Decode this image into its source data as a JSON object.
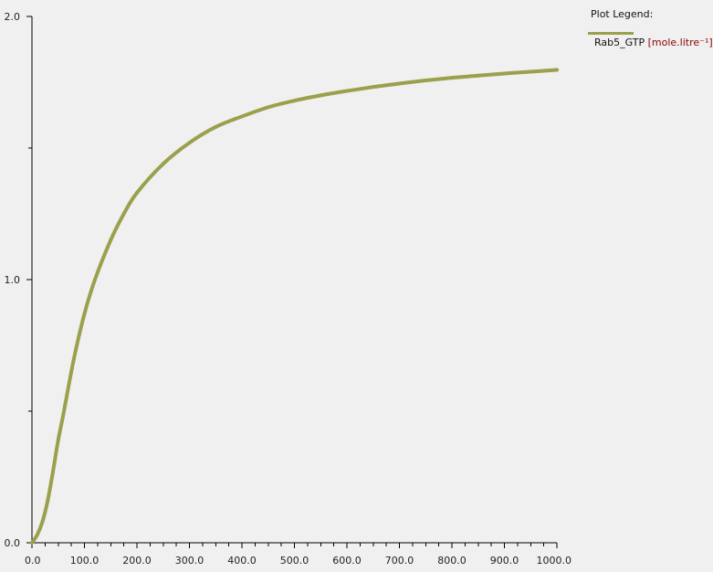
{
  "chart_data": {
    "type": "line",
    "title": "",
    "xlabel": "",
    "ylabel": "",
    "xlim": [
      0,
      1000
    ],
    "ylim": [
      0,
      2.0
    ],
    "x_ticks": [
      "0.0",
      "100.0",
      "200.0",
      "300.0",
      "400.0",
      "500.0",
      "600.0",
      "700.0",
      "800.0",
      "900.0",
      "1000.0"
    ],
    "y_ticks": [
      "0.0",
      "1.0",
      "2.0"
    ],
    "grid": false,
    "legend_position": "top-right",
    "series": [
      {
        "name": "Rab5_GTP",
        "unit": "[mole.litre⁻¹]",
        "color": "#9aa04c",
        "x": [
          0,
          10,
          20,
          30,
          40,
          50,
          60,
          80,
          100,
          120,
          150,
          175,
          200,
          250,
          300,
          350,
          400,
          450,
          500,
          550,
          600,
          650,
          700,
          750,
          800,
          850,
          900,
          950,
          1000
        ],
        "y": [
          0.0,
          0.03,
          0.08,
          0.16,
          0.27,
          0.39,
          0.49,
          0.7,
          0.87,
          1.0,
          1.15,
          1.25,
          1.33,
          1.44,
          1.52,
          1.58,
          1.62,
          1.655,
          1.68,
          1.7,
          1.717,
          1.732,
          1.745,
          1.757,
          1.767,
          1.775,
          1.783,
          1.79,
          1.797
        ]
      }
    ]
  },
  "legend": {
    "title": "Plot Legend:",
    "series_name": "Rab5_GTP",
    "unit": "[mole.litre⁻¹]"
  }
}
